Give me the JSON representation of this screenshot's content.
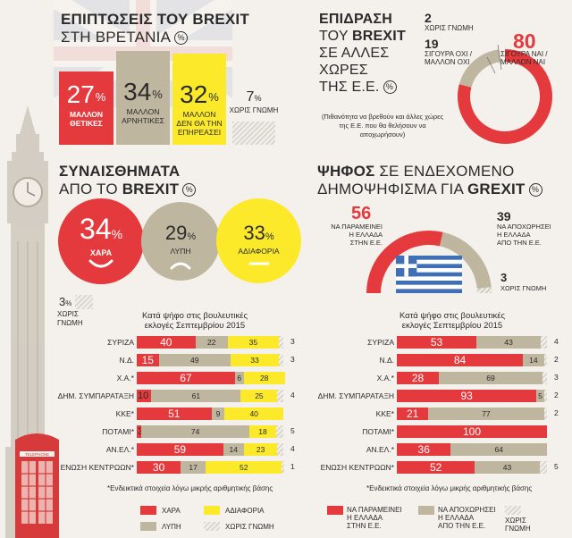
{
  "colors": {
    "red": "#e53a3d",
    "tan": "#bfb6a0",
    "yellow": "#fcea2a",
    "dark": "#2b2b2b"
  },
  "impact_uk": {
    "title_bold": "ΕΠΙΠΤΩΣΕΙΣ ΤΟΥ BREXIT",
    "title_light": "ΣΤΗ ΒΡΕΤΑΝΙΑ",
    "percent_icon": "%",
    "boxes": [
      {
        "value": "27",
        "label1": "ΜΑΛΛΟΝ",
        "label2": "ΘΕΤΙΚΕΣ",
        "label3": ""
      },
      {
        "value": "34",
        "label1": "ΜΑΛΛΟΝ",
        "label2": "ΑΡΝΗΤΙΚΕΣ",
        "label3": ""
      },
      {
        "value": "32",
        "label1": "ΜΑΛΛΟΝ",
        "label2": "ΔΕΝ ΘΑ ΤΗΝ",
        "label3": "ΕΠΗΡΕΑΣΕΙ"
      },
      {
        "value": "7",
        "label1": "ΧΩΡΙΣ ΓΝΩΜΗ",
        "label2": "",
        "label3": ""
      }
    ],
    "pct_sign": "%"
  },
  "impact_eu": {
    "title_l1": "ΕΠΙΔΡΑΣΗ",
    "title_l2a": "ΤΟΥ ",
    "title_l2b": "BREXIT",
    "title_l3": "ΣΕ ΑΛΛΕΣ",
    "title_l4": "ΧΩΡΕΣ",
    "title_l5": "ΤΗΣ Ε.Ε.",
    "note": "(Πιθανότητα να βρεθούν και άλλες χώρες της Ε.Ε. που θα θελήσουν να αποχωρήσουν)",
    "no_opinion_value": "2",
    "no_opinion_label": "ΧΩΡΙΣ ΓΝΩΜΗ",
    "no_value": "19",
    "no_label1": "ΣΙΓΟΥΡΑ ΟΧΙ /",
    "no_label2": "ΜΑΛΛΟΝ ΟΧΙ",
    "yes_value": "80",
    "yes_label1": "ΣΙΓΟΥΡΑ ΝΑΙ /",
    "yes_label2": "ΜΑΛΛΟΝ ΝΑΙ"
  },
  "feelings": {
    "title_bold": "ΣΥΝΑΙΣΘΗΜΑΤΑ",
    "title_l2a": "ΑΠΟ ΤΟ ",
    "title_l2b": "BREXIT",
    "items": [
      {
        "value": "34",
        "label": "ΧΑΡΑ"
      },
      {
        "value": "29",
        "label": "ΛΥΠΗ"
      },
      {
        "value": "33",
        "label": "ΑΔΙΑΦΟΡΙΑ"
      }
    ],
    "no_opinion_value": "3",
    "no_opinion_label1": "ΧΩΡΙΣ",
    "no_opinion_label2": "ΓΝΩΜΗ"
  },
  "grexit": {
    "title_bold": "ΨΗΦΟΣ",
    "title_rest": " ΣΕ ΕΝΔΕΧΟΜΕΝΟ",
    "title_l2a": "ΔΗΜΟΨΗΦΙΣΜΑ ΓΙΑ ",
    "title_l2b": "GREXIT",
    "stay_value": "56",
    "stay_label1": "ΝΑ ΠΑΡΑΜΕΙΝΕΙ",
    "stay_label2": "Η ΕΛΛΑΔΑ",
    "stay_label3": "ΣΤΗΝ Ε.Ε.",
    "leave_value": "39",
    "leave_label1": "ΝΑ ΑΠΟΧΩΡΗΣΕΙ",
    "leave_label2": "Η ΕΛΛΑΔΑ",
    "leave_label3": "ΑΠΟ ΤΗΝ Ε.Ε.",
    "none_value": "3",
    "none_label": "ΧΩΡΙΣ ΓΝΩΜΗ"
  },
  "left_table": {
    "subtitle1": "Κατά ψήφο στις βουλευτικές",
    "subtitle2": "εκλογές Σεπτεμβρίου 2015",
    "footnote": "*Ενδεικτικά στοιχεία λόγω μικρής αριθμητικής βάσης"
  },
  "right_table": {
    "subtitle1": "Κατά ψήφο στις βουλευτικές",
    "subtitle2": "εκλογές Σεπτεμβρίου 2015",
    "footnote": "*Ενδεικτικά στοιχεία λόγω μικρής αριθμητικής βάσης"
  },
  "legend_left": {
    "joy": "ΧΑΡΑ",
    "indiff": "ΑΔΙΑΦΟΡΙΑ",
    "sad": "ΛΥΠΗ",
    "none": "ΧΩΡΙΣ ΓΝΩΜΗ"
  },
  "legend_right": {
    "stay1": "ΝΑ ΠΑΡΑΜΕΙΝΕΙ",
    "stay2": "Η ΕΛΛΑΔΑ",
    "stay3": "ΣΤΗΝ Ε.Ε.",
    "leave1": "ΝΑ ΑΠΟΧΩΡΗΣΕΙ",
    "leave2": "Η ΕΛΛΑΔΑ",
    "leave3": "ΑΠΟ ΤΗΝ Ε.Ε.",
    "none1": "ΧΩΡΙΣ",
    "none2": "ΓΝΩΜΗ"
  },
  "phone_sign": "TELEPHONE",
  "chart_data": [
    {
      "type": "bar",
      "title": "ΣΥΝΑΙΣΘΗΜΑΤΑ ΑΠΟ ΤΟ BREXIT",
      "stacked": true,
      "categories": [
        "ΣΥΡΙΖΑ",
        "Ν.Δ.",
        "Χ.Α.*",
        "ΔΗΜ. ΣΥΜΠΑΡΑΤΑΞΗ",
        "ΚΚΕ*",
        "ΠΟΤΑΜΙ*",
        "ΑΝ.ΕΛ.*",
        "ΕΝΩΣΗ ΚΕΝΤΡΩΩΝ*"
      ],
      "series": [
        {
          "name": "ΧΑΡΑ",
          "values": [
            40,
            15,
            67,
            10,
            51,
            3,
            59,
            30
          ]
        },
        {
          "name": "ΛΥΠΗ",
          "values": [
            22,
            49,
            6,
            61,
            9,
            74,
            14,
            17
          ]
        },
        {
          "name": "ΑΔΙΑΦΟΡΙΑ",
          "values": [
            35,
            33,
            28,
            25,
            40,
            18,
            23,
            52
          ]
        },
        {
          "name": "ΧΩΡΙΣ ΓΝΩΜΗ",
          "values": [
            3,
            3,
            0,
            4,
            0,
            5,
            4,
            1
          ]
        }
      ]
    },
    {
      "type": "bar",
      "title": "ΨΗΦΟΣ ΣΕ ΕΝΔΕΧΟΜΕΝΟ ΔΗΜΟΨΗΦΙΣΜΑ ΓΙΑ GREXIT",
      "stacked": true,
      "categories": [
        "ΣΥΡΙΖΑ",
        "Ν.Δ.",
        "Χ.Α.*",
        "ΔΗΜ. ΣΥΜΠΑΡΑΤΑΞΗ",
        "ΚΚΕ*",
        "ΠΟΤΑΜΙ*",
        "ΑΝ.ΕΛ.*",
        "ΕΝΩΣΗ ΚΕΝΤΡΩΩΝ*"
      ],
      "series": [
        {
          "name": "ΝΑ ΠΑΡΑΜΕΙΝΕΙ Η ΕΛΛΑΔΑ ΣΤΗΝ Ε.Ε.",
          "values": [
            53,
            84,
            28,
            93,
            21,
            100,
            36,
            52
          ]
        },
        {
          "name": "ΝΑ ΑΠΟΧΩΡΗΣΕΙ Η ΕΛΛΑΔΑ ΑΠΟ ΤΗΝ Ε.Ε.",
          "values": [
            43,
            14,
            69,
            5,
            77,
            0,
            64,
            43
          ]
        },
        {
          "name": "ΧΩΡΙΣ ΓΝΩΜΗ",
          "values": [
            4,
            2,
            3,
            2,
            2,
            0,
            0,
            5
          ]
        }
      ]
    },
    {
      "type": "pie",
      "title": "ΕΠΙΔΡΑΣΗ ΤΟΥ BREXIT ΣΕ ΑΛΛΕΣ ΧΩΡΕΣ ΤΗΣ Ε.Ε.",
      "categories": [
        "ΣΙΓΟΥΡΑ ΝΑΙ / ΜΑΛΛΟΝ ΝΑΙ",
        "ΣΙΓΟΥΡΑ ΟΧΙ / ΜΑΛΛΟΝ ΟΧΙ",
        "ΧΩΡΙΣ ΓΝΩΜΗ"
      ],
      "values": [
        80,
        19,
        2
      ]
    },
    {
      "type": "pie",
      "title": "ΨΗΦΟΣ ΣΕ ΕΝΔΕΧΟΜΕΝΟ ΔΗΜΟΨΗΦΙΣΜΑ ΓΙΑ GREXIT",
      "categories": [
        "ΝΑ ΠΑΡΑΜΕΙΝΕΙ Η ΕΛΛΑΔΑ ΣΤΗΝ Ε.Ε.",
        "ΝΑ ΑΠΟΧΩΡΗΣΕΙ Η ΕΛΛΑΔΑ ΑΠΟ ΤΗΝ Ε.Ε.",
        "ΧΩΡΙΣ ΓΝΩΜΗ"
      ],
      "values": [
        56,
        39,
        3
      ]
    }
  ]
}
